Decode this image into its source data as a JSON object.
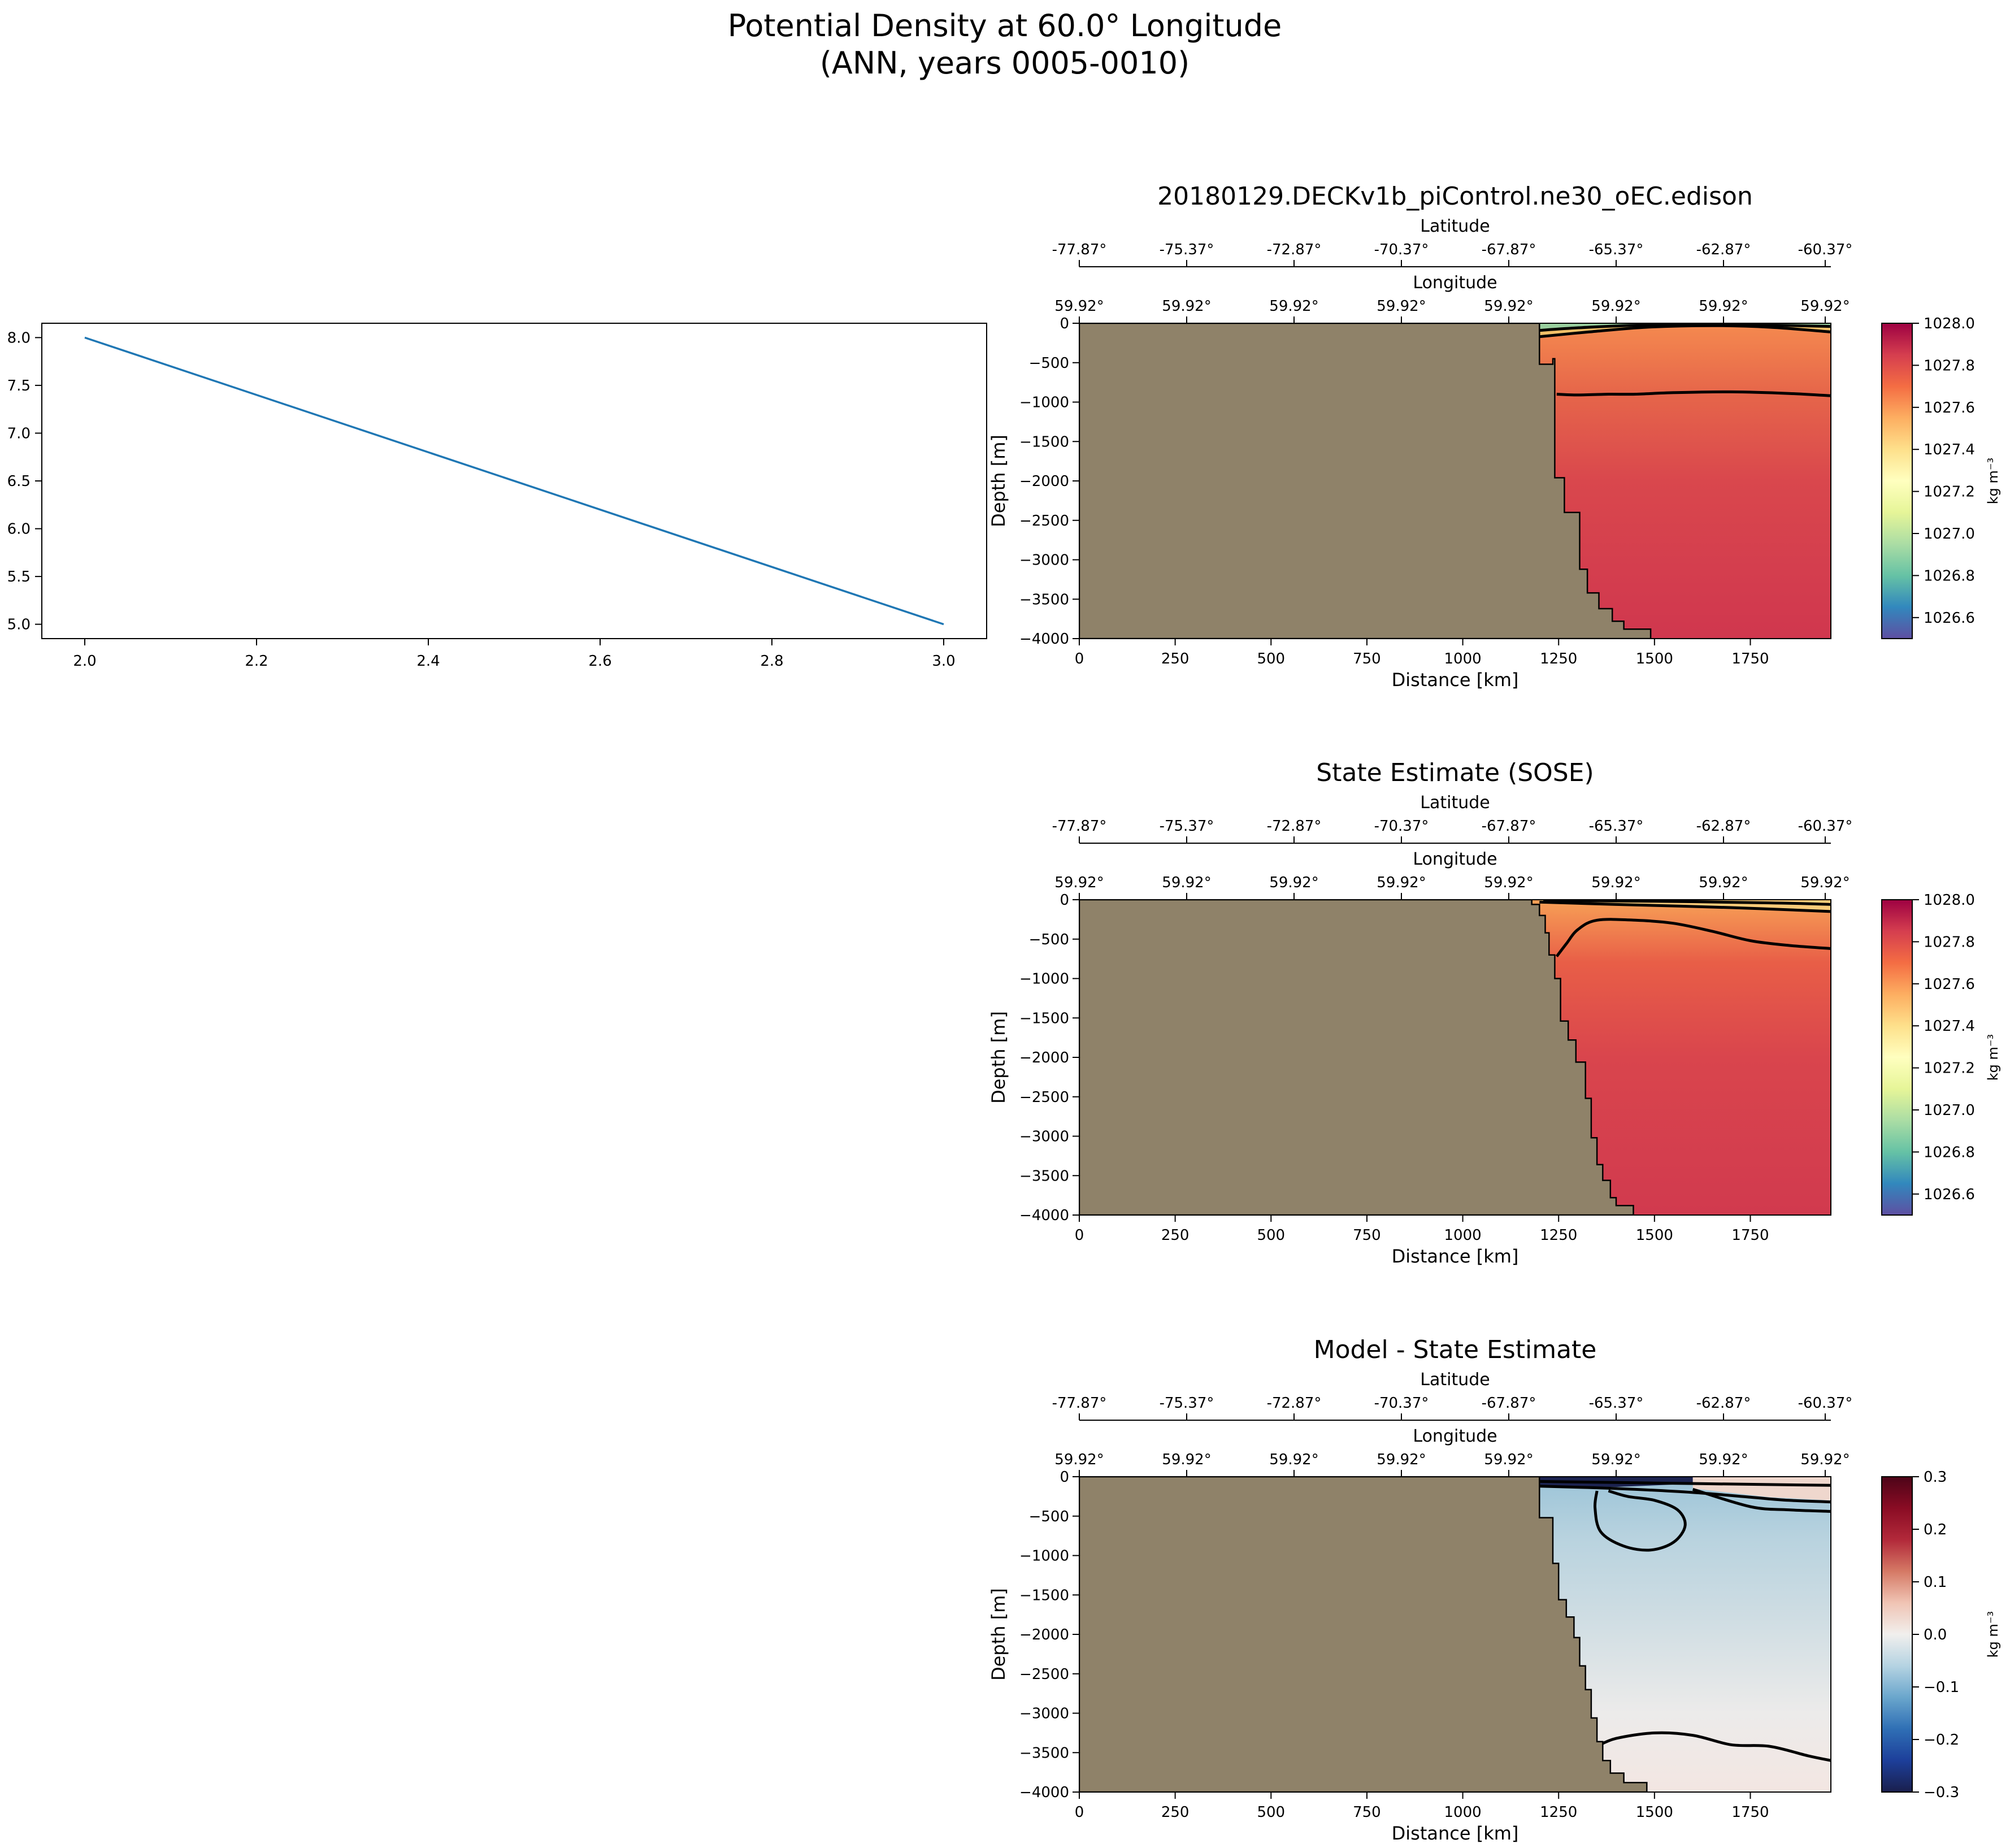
{
  "figure": {
    "title_line1": "Potential Density at 60.0° Longitude",
    "title_line2": "(ANN, years 0005-0010)"
  },
  "colors": {
    "land": "#8F8269",
    "line": "#1f77b4",
    "contour": "#000000"
  },
  "chart_data": [
    {
      "type": "line",
      "title": "",
      "x": [
        2.0,
        3.0
      ],
      "y": [
        8.0,
        5.0
      ],
      "xlim": [
        1.95,
        3.05
      ],
      "ylim": [
        4.85,
        8.15
      ],
      "xticks": [
        "2.0",
        "2.2",
        "2.4",
        "2.6",
        "2.8",
        "3.0"
      ],
      "yticks": [
        "5.0",
        "5.5",
        "6.0",
        "6.5",
        "7.0",
        "7.5",
        "8.0"
      ]
    },
    {
      "type": "heatmap",
      "title": "20180129.DECKv1b_piControl.ne30_oEC.edison",
      "xlabel": "Distance [km]",
      "ylabel": "Depth [m]",
      "xlim": [
        0,
        1960
      ],
      "ylim": [
        -4000,
        0
      ],
      "xticks": [
        "0",
        "250",
        "500",
        "750",
        "1000",
        "1250",
        "1500",
        "1750"
      ],
      "yticks": [
        "0",
        "−500",
        "−1000",
        "−1500",
        "−2000",
        "−2500",
        "−3000",
        "−3500",
        "−4000"
      ],
      "lat_label": "Latitude",
      "lat_ticks": [
        "-77.87°",
        "-75.37°",
        "-72.87°",
        "-70.37°",
        "-67.87°",
        "-65.37°",
        "-62.87°",
        "-60.37°"
      ],
      "lon_label": "Longitude",
      "lon_ticks": [
        "59.92°",
        "59.92°",
        "59.92°",
        "59.92°",
        "59.92°",
        "59.92°",
        "59.92°",
        "59.92°"
      ],
      "colorbar": {
        "label": "kg m⁻³",
        "range": [
          1026.5,
          1028.0
        ],
        "ticks": [
          "1028.0",
          "1027.8",
          "1027.6",
          "1027.4",
          "1027.2",
          "1027.0",
          "1026.8",
          "1026.6"
        ],
        "stops": [
          "#5e4fa2",
          "#3288bd",
          "#66c2a5",
          "#abdda4",
          "#e6f598",
          "#ffffbf",
          "#fee08b",
          "#fdae61",
          "#f46d43",
          "#d53e4f",
          "#9e0142"
        ]
      },
      "bathymetry_km": [
        [
          1200,
          0
        ],
        [
          1200,
          -520
        ],
        [
          1235,
          -520
        ],
        [
          1235,
          -450
        ],
        [
          1240,
          -450
        ],
        [
          1240,
          -1960
        ],
        [
          1265,
          -1960
        ],
        [
          1265,
          -2400
        ],
        [
          1305,
          -2400
        ],
        [
          1305,
          -3120
        ],
        [
          1325,
          -3120
        ],
        [
          1325,
          -3420
        ],
        [
          1355,
          -3420
        ],
        [
          1355,
          -3620
        ],
        [
          1390,
          -3620
        ],
        [
          1390,
          -3780
        ],
        [
          1420,
          -3780
        ],
        [
          1420,
          -3880
        ],
        [
          1490,
          -3880
        ],
        [
          1490,
          -4000
        ]
      ],
      "contours": [
        [
          [
            1245,
            -900
          ],
          [
            1300,
            -910
          ],
          [
            1380,
            -900
          ],
          [
            1450,
            -900
          ],
          [
            1550,
            -880
          ],
          [
            1700,
            -870
          ],
          [
            1850,
            -890
          ],
          [
            1960,
            -920
          ]
        ],
        [
          [
            1200,
            -170
          ],
          [
            1330,
            -110
          ],
          [
            1480,
            -50
          ],
          [
            1650,
            -30
          ],
          [
            1800,
            -50
          ],
          [
            1960,
            -110
          ]
        ],
        [
          [
            1200,
            -90
          ],
          [
            1330,
            -50
          ],
          [
            1500,
            -20
          ],
          [
            1700,
            -15
          ],
          [
            1960,
            -40
          ]
        ]
      ]
    },
    {
      "type": "heatmap",
      "title": "State Estimate (SOSE)",
      "xlabel": "Distance [km]",
      "ylabel": "Depth [m]",
      "xlim": [
        0,
        1960
      ],
      "ylim": [
        -4000,
        0
      ],
      "xticks": [
        "0",
        "250",
        "500",
        "750",
        "1000",
        "1250",
        "1500",
        "1750"
      ],
      "yticks": [
        "0",
        "−500",
        "−1000",
        "−1500",
        "−2000",
        "−2500",
        "−3000",
        "−3500",
        "−4000"
      ],
      "lat_label": "Latitude",
      "lat_ticks": [
        "-77.87°",
        "-75.37°",
        "-72.87°",
        "-70.37°",
        "-67.87°",
        "-65.37°",
        "-62.87°",
        "-60.37°"
      ],
      "lon_label": "Longitude",
      "lon_ticks": [
        "59.92°",
        "59.92°",
        "59.92°",
        "59.92°",
        "59.92°",
        "59.92°",
        "59.92°",
        "59.92°"
      ],
      "colorbar": {
        "label": "kg m⁻³",
        "range": [
          1026.5,
          1028.0
        ],
        "ticks": [
          "1028.0",
          "1027.8",
          "1027.6",
          "1027.4",
          "1027.2",
          "1027.0",
          "1026.8",
          "1026.6"
        ],
        "stops": [
          "#5e4fa2",
          "#3288bd",
          "#66c2a5",
          "#abdda4",
          "#e6f598",
          "#ffffbf",
          "#fee08b",
          "#fdae61",
          "#f46d43",
          "#d53e4f",
          "#9e0142"
        ]
      },
      "bathymetry_km": [
        [
          1180,
          0
        ],
        [
          1180,
          -60
        ],
        [
          1200,
          -60
        ],
        [
          1200,
          -200
        ],
        [
          1215,
          -200
        ],
        [
          1215,
          -420
        ],
        [
          1225,
          -420
        ],
        [
          1225,
          -700
        ],
        [
          1240,
          -700
        ],
        [
          1240,
          -1000
        ],
        [
          1255,
          -1000
        ],
        [
          1255,
          -1540
        ],
        [
          1275,
          -1540
        ],
        [
          1275,
          -1780
        ],
        [
          1295,
          -1780
        ],
        [
          1295,
          -2060
        ],
        [
          1320,
          -2060
        ],
        [
          1320,
          -2520
        ],
        [
          1335,
          -2520
        ],
        [
          1335,
          -3020
        ],
        [
          1350,
          -3020
        ],
        [
          1350,
          -3360
        ],
        [
          1365,
          -3360
        ],
        [
          1365,
          -3560
        ],
        [
          1385,
          -3560
        ],
        [
          1385,
          -3780
        ],
        [
          1400,
          -3780
        ],
        [
          1400,
          -3880
        ],
        [
          1445,
          -3880
        ],
        [
          1445,
          -4000
        ]
      ],
      "contours": [
        [
          [
            1245,
            -720
          ],
          [
            1270,
            -560
          ],
          [
            1300,
            -380
          ],
          [
            1350,
            -260
          ],
          [
            1450,
            -260
          ],
          [
            1550,
            -300
          ],
          [
            1650,
            -400
          ],
          [
            1750,
            -520
          ],
          [
            1850,
            -580
          ],
          [
            1960,
            -620
          ]
        ],
        [
          [
            1200,
            -30
          ],
          [
            1400,
            -60
          ],
          [
            1700,
            -100
          ],
          [
            1960,
            -150
          ]
        ],
        [
          [
            1210,
            -10
          ],
          [
            1500,
            -20
          ],
          [
            1800,
            -40
          ],
          [
            1960,
            -60
          ]
        ]
      ]
    },
    {
      "type": "heatmap",
      "title": "Model - State Estimate",
      "xlabel": "Distance [km]",
      "ylabel": "Depth [m]",
      "xlim": [
        0,
        1960
      ],
      "ylim": [
        -4000,
        0
      ],
      "xticks": [
        "0",
        "250",
        "500",
        "750",
        "1000",
        "1250",
        "1500",
        "1750"
      ],
      "yticks": [
        "0",
        "−500",
        "−1000",
        "−1500",
        "−2000",
        "−2500",
        "−3000",
        "−3500",
        "−4000"
      ],
      "lat_label": "Latitude",
      "lat_ticks": [
        "-77.87°",
        "-75.37°",
        "-72.87°",
        "-70.37°",
        "-67.87°",
        "-65.37°",
        "-62.87°",
        "-60.37°"
      ],
      "lon_label": "Longitude",
      "lon_ticks": [
        "59.92°",
        "59.92°",
        "59.92°",
        "59.92°",
        "59.92°",
        "59.92°",
        "59.92°",
        "59.92°"
      ],
      "colorbar": {
        "label": "kg m⁻³",
        "range": [
          -0.3,
          0.3
        ],
        "ticks": [
          "0.3",
          "0.2",
          "0.1",
          "0.0",
          "−0.1",
          "−0.2",
          "−0.3"
        ],
        "stops": [
          "#1a1f4d",
          "#1d3f9a",
          "#2f6fb5",
          "#6aa6cc",
          "#b5d3e2",
          "#f1efed",
          "#f0c4b4",
          "#d57965",
          "#b2293a",
          "#8a0c24",
          "#4d0418"
        ]
      },
      "bathymetry_km": [
        [
          1200,
          0
        ],
        [
          1200,
          -520
        ],
        [
          1235,
          -520
        ],
        [
          1235,
          -1100
        ],
        [
          1250,
          -1100
        ],
        [
          1250,
          -1560
        ],
        [
          1270,
          -1560
        ],
        [
          1270,
          -1780
        ],
        [
          1290,
          -1780
        ],
        [
          1290,
          -2040
        ],
        [
          1305,
          -2040
        ],
        [
          1305,
          -2400
        ],
        [
          1320,
          -2400
        ],
        [
          1320,
          -2700
        ],
        [
          1335,
          -2700
        ],
        [
          1335,
          -3060
        ],
        [
          1350,
          -3060
        ],
        [
          1350,
          -3360
        ],
        [
          1365,
          -3360
        ],
        [
          1365,
          -3600
        ],
        [
          1385,
          -3600
        ],
        [
          1385,
          -3760
        ],
        [
          1420,
          -3760
        ],
        [
          1420,
          -3880
        ],
        [
          1480,
          -3880
        ],
        [
          1480,
          -4000
        ]
      ],
      "contours": [
        [
          [
            1350,
            -180
          ],
          [
            1345,
            -400
          ],
          [
            1360,
            -700
          ],
          [
            1420,
            -880
          ],
          [
            1490,
            -930
          ],
          [
            1550,
            -830
          ],
          [
            1580,
            -620
          ],
          [
            1560,
            -420
          ],
          [
            1500,
            -300
          ],
          [
            1430,
            -250
          ],
          [
            1380,
            -180
          ]
        ],
        [
          [
            1350,
            -3420
          ],
          [
            1400,
            -3320
          ],
          [
            1500,
            -3250
          ],
          [
            1600,
            -3280
          ],
          [
            1700,
            -3400
          ],
          [
            1800,
            -3420
          ],
          [
            1900,
            -3540
          ],
          [
            1960,
            -3600
          ]
        ],
        [
          [
            1200,
            -120
          ],
          [
            1400,
            -150
          ],
          [
            1600,
            -200
          ],
          [
            1750,
            -260
          ],
          [
            1850,
            -300
          ],
          [
            1960,
            -320
          ]
        ],
        [
          [
            1600,
            -160
          ],
          [
            1750,
            -380
          ],
          [
            1850,
            -420
          ],
          [
            1960,
            -440
          ]
        ],
        [
          [
            1200,
            -60
          ],
          [
            1500,
            -80
          ],
          [
            1800,
            -100
          ],
          [
            1960,
            -110
          ]
        ]
      ]
    }
  ]
}
